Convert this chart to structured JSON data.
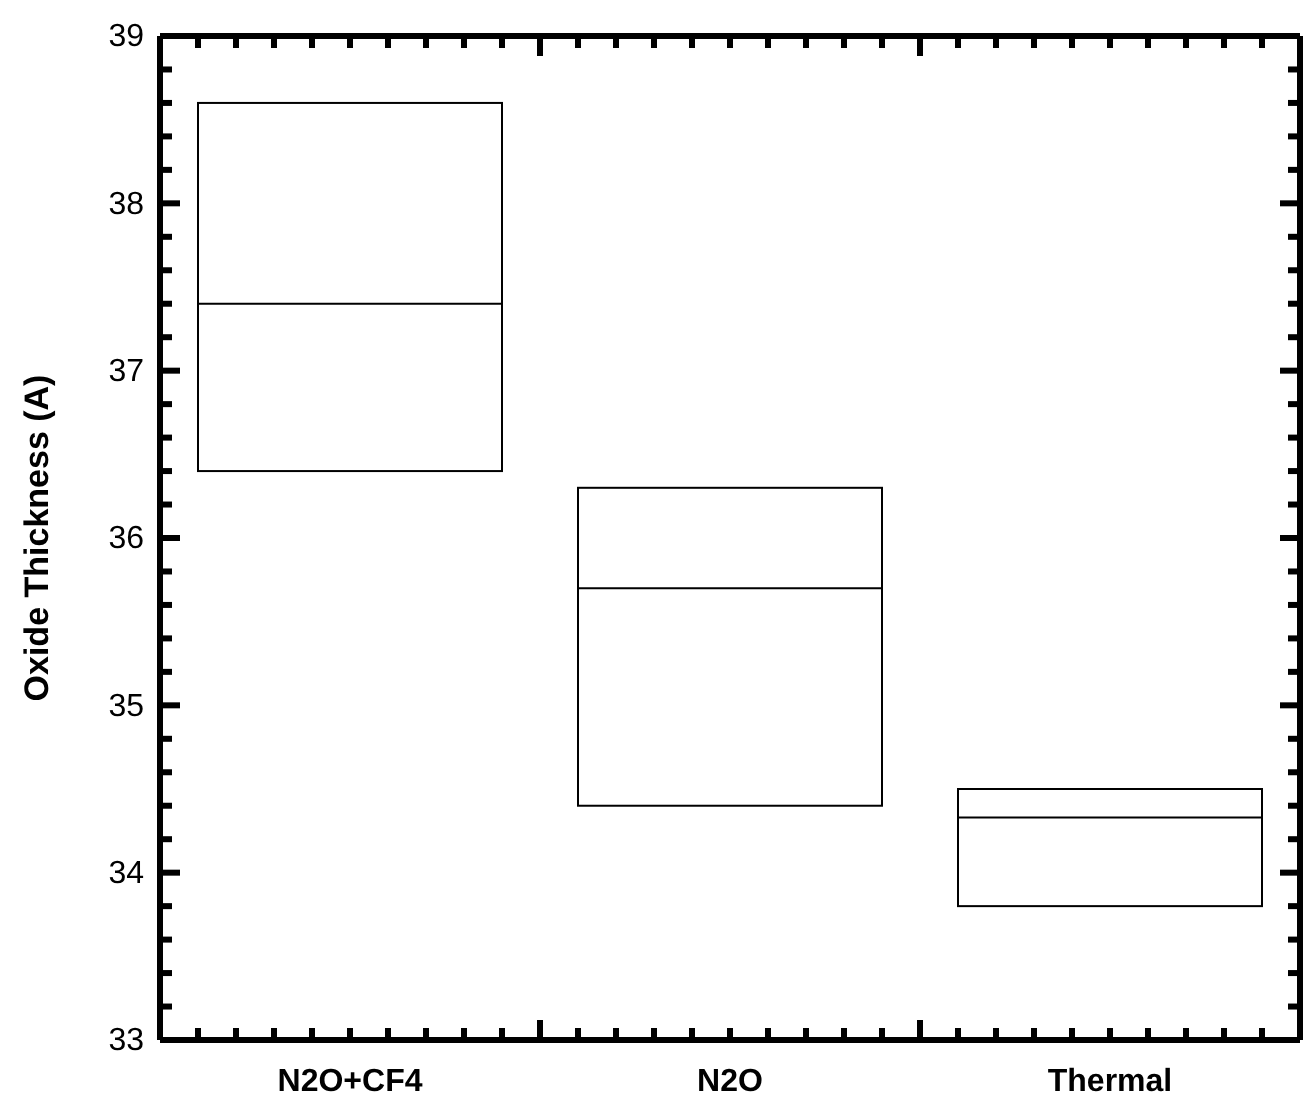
{
  "chart_data": {
    "type": "box",
    "ylabel": "Oxide Thickness (A)",
    "categories": [
      "N2O+CF4",
      "N2O",
      "Thermal"
    ],
    "boxes": [
      {
        "low": 36.4,
        "q1": 36.4,
        "median": 37.4,
        "q3": 38.6,
        "high": 38.6
      },
      {
        "low": 34.4,
        "q1": 34.4,
        "median": 35.7,
        "q3": 36.3,
        "high": 36.3
      },
      {
        "low": 33.8,
        "q1": 33.8,
        "median": 34.33,
        "q3": 34.5,
        "high": 34.5
      }
    ],
    "ylim": [
      33,
      39
    ],
    "yticks": [
      33,
      {
        "value": 33.2,
        "label": null
      },
      {
        "value": 33.4,
        "label": null
      },
      {
        "value": 33.6,
        "label": null
      },
      {
        "value": 33.8,
        "label": null
      },
      34,
      {
        "value": 34.2,
        "label": null
      },
      {
        "value": 34.4,
        "label": null
      },
      {
        "value": 34.6,
        "label": null
      },
      {
        "value": 34.8,
        "label": null
      },
      35,
      {
        "value": 35.2,
        "label": null
      },
      {
        "value": 35.4,
        "label": null
      },
      {
        "value": 35.6,
        "label": null
      },
      {
        "value": 35.8,
        "label": null
      },
      36,
      {
        "value": 36.2,
        "label": null
      },
      {
        "value": 36.4,
        "label": null
      },
      {
        "value": 36.6,
        "label": null
      },
      {
        "value": 36.8,
        "label": null
      },
      37,
      {
        "value": 37.2,
        "label": null
      },
      {
        "value": 37.4,
        "label": null
      },
      {
        "value": 37.6,
        "label": null
      },
      {
        "value": 37.8,
        "label": null
      },
      38,
      {
        "value": 38.2,
        "label": null
      },
      {
        "value": 38.4,
        "label": null
      },
      {
        "value": 38.6,
        "label": null
      },
      {
        "value": 38.8,
        "label": null
      },
      39
    ],
    "grid": false
  }
}
